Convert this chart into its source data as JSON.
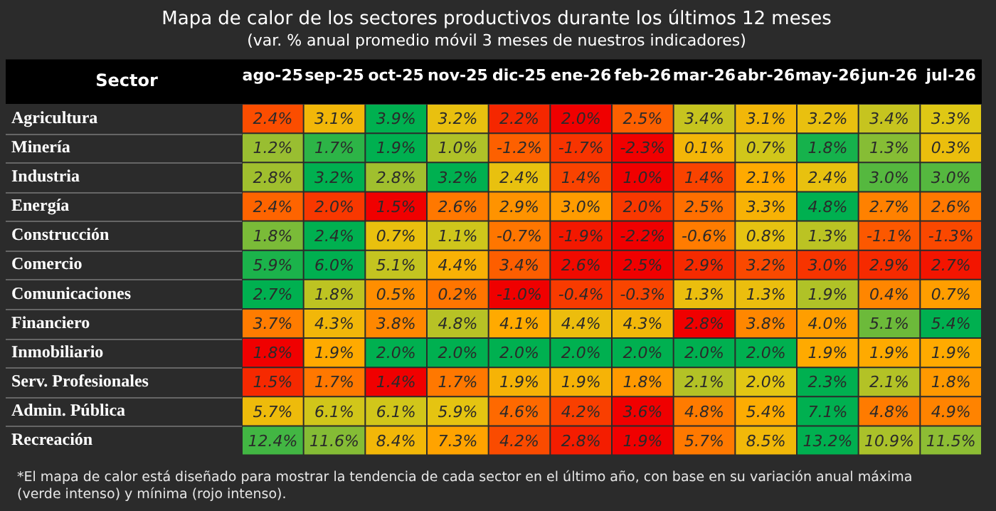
{
  "chart_data": {
    "type": "heatmap",
    "title": "Mapa de calor de los sectores productivos durante los últimos 12 meses",
    "subtitle": "(var. % anual promedio móvil 3 meses de nuestros indicadores)",
    "ylabel": "Sector",
    "categories": [
      "ago-25",
      "sep-25",
      "oct-25",
      "nov-25",
      "dic-25",
      "ene-26",
      "feb-26",
      "mar-26",
      "abr-26",
      "may-26",
      "jun-26",
      "jul-26"
    ],
    "y_categories": [
      "Agricultura",
      "Minería",
      "Industria",
      "Energía",
      "Construcción",
      "Comercio",
      "Comunicaciones",
      "Financiero",
      "Inmobiliario",
      "Serv. Profesionales",
      "Admin. Pública",
      "Recreación"
    ],
    "cells": [
      [
        2.4,
        3.1,
        3.9,
        3.2,
        2.2,
        2.0,
        2.5,
        3.4,
        3.1,
        3.2,
        3.4,
        3.3
      ],
      [
        1.2,
        1.7,
        1.9,
        1.0,
        -1.2,
        -1.7,
        -2.3,
        0.1,
        0.7,
        1.8,
        1.3,
        0.3
      ],
      [
        2.8,
        3.2,
        2.8,
        3.2,
        2.4,
        1.4,
        1.0,
        1.4,
        2.1,
        2.4,
        3.0,
        3.0
      ],
      [
        2.4,
        2.0,
        1.5,
        2.6,
        2.9,
        3.0,
        2.0,
        2.5,
        3.3,
        4.8,
        2.7,
        2.6
      ],
      [
        1.8,
        2.4,
        0.7,
        1.1,
        -0.7,
        -1.9,
        -2.2,
        -0.6,
        0.8,
        1.3,
        -1.1,
        -1.3
      ],
      [
        5.9,
        6.0,
        5.1,
        4.4,
        3.4,
        2.6,
        2.5,
        2.9,
        3.2,
        3.0,
        2.9,
        2.7
      ],
      [
        2.7,
        1.8,
        0.5,
        0.2,
        -1.0,
        -0.4,
        -0.3,
        1.3,
        1.3,
        1.9,
        0.4,
        0.7
      ],
      [
        3.7,
        4.3,
        3.8,
        4.8,
        4.1,
        4.4,
        4.3,
        2.8,
        3.8,
        4.0,
        5.1,
        5.4
      ],
      [
        1.8,
        1.9,
        2.0,
        2.0,
        2.0,
        2.0,
        2.0,
        2.0,
        2.0,
        1.9,
        1.9,
        1.9
      ],
      [
        1.5,
        1.7,
        1.4,
        1.7,
        1.9,
        1.9,
        1.8,
        2.1,
        2.0,
        2.3,
        2.1,
        1.8
      ],
      [
        5.7,
        6.1,
        6.1,
        5.9,
        4.6,
        4.2,
        3.6,
        4.8,
        5.4,
        7.1,
        4.8,
        4.9
      ],
      [
        12.4,
        11.6,
        8.4,
        7.3,
        4.2,
        2.8,
        1.9,
        5.7,
        8.5,
        13.2,
        10.9,
        11.5
      ]
    ],
    "cell_labels": [
      [
        "2.4%",
        "3.1%",
        "3.9%",
        "3.2%",
        "2.2%",
        "2.0%",
        "2.5%",
        "3.4%",
        "3.1%",
        "3.2%",
        "3.4%",
        "3.3%"
      ],
      [
        "1.2%",
        "1.7%",
        "1.9%",
        "1.0%",
        "-1.2%",
        "-1.7%",
        "-2.3%",
        "0.1%",
        "0.7%",
        "1.8%",
        "1.3%",
        "0.3%"
      ],
      [
        "2.8%",
        "3.2%",
        "2.8%",
        "3.2%",
        "2.4%",
        "1.4%",
        "1.0%",
        "1.4%",
        "2.1%",
        "2.4%",
        "3.0%",
        "3.0%"
      ],
      [
        "2.4%",
        "2.0%",
        "1.5%",
        "2.6%",
        "2.9%",
        "3.0%",
        "2.0%",
        "2.5%",
        "3.3%",
        "4.8%",
        "2.7%",
        "2.6%"
      ],
      [
        "1.8%",
        "2.4%",
        "0.7%",
        "1.1%",
        "-0.7%",
        "-1.9%",
        "-2.2%",
        "-0.6%",
        "0.8%",
        "1.3%",
        "-1.1%",
        "-1.3%"
      ],
      [
        "5.9%",
        "6.0%",
        "5.1%",
        "4.4%",
        "3.4%",
        "2.6%",
        "2.5%",
        "2.9%",
        "3.2%",
        "3.0%",
        "2.9%",
        "2.7%"
      ],
      [
        "2.7%",
        "1.8%",
        "0.5%",
        "0.2%",
        "-1.0%",
        "-0.4%",
        "-0.3%",
        "1.3%",
        "1.3%",
        "1.9%",
        "0.4%",
        "0.7%"
      ],
      [
        "3.7%",
        "4.3%",
        "3.8%",
        "4.8%",
        "4.1%",
        "4.4%",
        "4.3%",
        "2.8%",
        "3.8%",
        "4.0%",
        "5.1%",
        "5.4%"
      ],
      [
        "1.8%",
        "1.9%",
        "2.0%",
        "2.0%",
        "2.0%",
        "2.0%",
        "2.0%",
        "2.0%",
        "2.0%",
        "1.9%",
        "1.9%",
        "1.9%"
      ],
      [
        "1.5%",
        "1.7%",
        "1.4%",
        "1.7%",
        "1.9%",
        "1.9%",
        "1.8%",
        "2.1%",
        "2.0%",
        "2.3%",
        "2.1%",
        "1.8%"
      ],
      [
        "5.7%",
        "6.1%",
        "6.1%",
        "5.9%",
        "4.6%",
        "4.2%",
        "3.6%",
        "4.8%",
        "5.4%",
        "7.1%",
        "4.8%",
        "4.9%"
      ],
      [
        "12.4%",
        "11.6%",
        "8.4%",
        "7.3%",
        "4.2%",
        "2.8%",
        "1.9%",
        "5.7%",
        "8.5%",
        "13.2%",
        "10.9%",
        "11.5%"
      ]
    ],
    "annotations": [
      "*El mapa de calor está diseñado para mostrar la tendencia de cada sector en el último año, con base en su variación anual máxima (verde intenso) y mínima (rojo intenso)."
    ]
  }
}
